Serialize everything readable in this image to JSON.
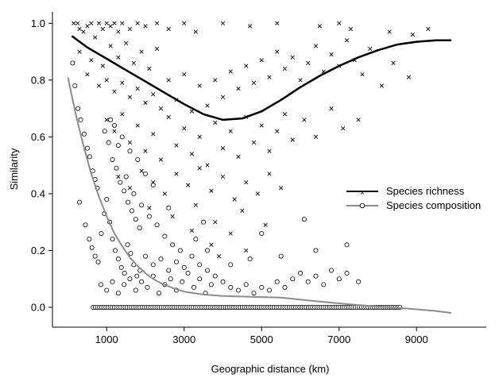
{
  "chart_data": {
    "type": "scatter",
    "xlabel": "Geographic distance (km)",
    "ylabel": "Similarity",
    "xlim": [
      -400,
      10800
    ],
    "ylim": [
      -0.07,
      1.04
    ],
    "xticks": [
      1000,
      3000,
      5000,
      7000,
      9000
    ],
    "xtick_labels": [
      "1000",
      "3000",
      "5000",
      "7000",
      "9000"
    ],
    "yticks": [
      0.0,
      0.2,
      0.4,
      0.6,
      0.8,
      1.0
    ],
    "ytick_labels": [
      "0.0",
      "0.2",
      "0.4",
      "0.6",
      "0.8",
      "1.0"
    ],
    "grid": false,
    "legend_position": "right",
    "series": [
      {
        "name": "Species richness",
        "marker": "x",
        "color": "#000000",
        "trend": {
          "x": [
            100,
            500,
            1000,
            1500,
            2000,
            2500,
            3000,
            3500,
            4000,
            4500,
            5000,
            5500,
            6000,
            6500,
            7000,
            7500,
            8000,
            8500,
            9000,
            9500,
            9900
          ],
          "y": [
            0.955,
            0.915,
            0.875,
            0.835,
            0.795,
            0.755,
            0.715,
            0.68,
            0.66,
            0.665,
            0.69,
            0.73,
            0.775,
            0.815,
            0.85,
            0.88,
            0.905,
            0.925,
            0.935,
            0.94,
            0.94
          ]
        },
        "points": [
          [
            150,
            1.0
          ],
          [
            250,
            1.0
          ],
          [
            300,
            0.98
          ],
          [
            400,
            0.97
          ],
          [
            500,
            0.99
          ],
          [
            600,
            1.0
          ],
          [
            700,
            0.95
          ],
          [
            800,
            1.0
          ],
          [
            900,
            0.98
          ],
          [
            1000,
            1.0
          ],
          [
            1100,
            0.99
          ],
          [
            1200,
            1.0
          ],
          [
            1300,
            0.97
          ],
          [
            1400,
            1.0
          ],
          [
            1600,
            0.98
          ],
          [
            1800,
            1.0
          ],
          [
            2000,
            0.99
          ],
          [
            2300,
            1.0
          ],
          [
            2600,
            0.98
          ],
          [
            3000,
            1.0
          ],
          [
            3300,
            0.97
          ],
          [
            4000,
            1.0
          ],
          [
            4700,
            0.99
          ],
          [
            5400,
            1.0
          ],
          [
            6500,
            0.99
          ],
          [
            7000,
            1.0
          ],
          [
            7300,
            0.98
          ],
          [
            8300,
            0.97
          ],
          [
            8900,
            0.96
          ],
          [
            9300,
            0.98
          ],
          [
            300,
            0.9
          ],
          [
            600,
            0.87
          ],
          [
            900,
            0.85
          ],
          [
            1100,
            0.92
          ],
          [
            1300,
            0.88
          ],
          [
            1500,
            0.93
          ],
          [
            1700,
            0.86
          ],
          [
            1900,
            0.9
          ],
          [
            2100,
            0.84
          ],
          [
            2300,
            0.91
          ],
          [
            500,
            0.82
          ],
          [
            800,
            0.78
          ],
          [
            1000,
            0.8
          ],
          [
            1200,
            0.76
          ],
          [
            1400,
            0.79
          ],
          [
            1600,
            0.74
          ],
          [
            1800,
            0.77
          ],
          [
            2000,
            0.72
          ],
          [
            2200,
            0.75
          ],
          [
            2400,
            0.7
          ],
          [
            2600,
            0.8
          ],
          [
            2800,
            0.73
          ],
          [
            3000,
            0.82
          ],
          [
            3200,
            0.69
          ],
          [
            3400,
            0.78
          ],
          [
            3600,
            0.71
          ],
          [
            3800,
            0.8
          ],
          [
            4000,
            0.74
          ],
          [
            4200,
            0.83
          ],
          [
            4400,
            0.77
          ],
          [
            4600,
            0.85
          ],
          [
            4800,
            0.79
          ],
          [
            5000,
            0.87
          ],
          [
            5200,
            0.81
          ],
          [
            5400,
            0.9
          ],
          [
            5600,
            0.84
          ],
          [
            5800,
            0.88
          ],
          [
            6000,
            0.8
          ],
          [
            6200,
            0.86
          ],
          [
            6400,
            0.92
          ],
          [
            6600,
            0.83
          ],
          [
            6800,
            0.89
          ],
          [
            7000,
            0.85
          ],
          [
            7200,
            0.94
          ],
          [
            7400,
            0.87
          ],
          [
            7600,
            0.82
          ],
          [
            7800,
            0.91
          ],
          [
            8100,
            0.78
          ],
          [
            8400,
            0.86
          ],
          [
            8800,
            0.81
          ],
          [
            1000,
            0.66
          ],
          [
            1200,
            0.62
          ],
          [
            1400,
            0.68
          ],
          [
            1600,
            0.58
          ],
          [
            1800,
            0.64
          ],
          [
            2000,
            0.55
          ],
          [
            2200,
            0.61
          ],
          [
            2400,
            0.52
          ],
          [
            2600,
            0.67
          ],
          [
            2800,
            0.57
          ],
          [
            3000,
            0.63
          ],
          [
            3200,
            0.54
          ],
          [
            3400,
            0.6
          ],
          [
            3600,
            0.5
          ],
          [
            3800,
            0.65
          ],
          [
            4000,
            0.56
          ],
          [
            4200,
            0.62
          ],
          [
            4400,
            0.53
          ],
          [
            4600,
            0.67
          ],
          [
            4800,
            0.58
          ],
          [
            5000,
            0.64
          ],
          [
            5200,
            0.55
          ],
          [
            5400,
            0.62
          ],
          [
            5600,
            0.68
          ],
          [
            5800,
            0.59
          ],
          [
            6100,
            0.66
          ],
          [
            6400,
            0.6
          ],
          [
            6800,
            0.7
          ],
          [
            7100,
            0.63
          ],
          [
            7500,
            0.66
          ],
          [
            1300,
            0.46
          ],
          [
            1600,
            0.42
          ],
          [
            1900,
            0.48
          ],
          [
            2200,
            0.44
          ],
          [
            2500,
            0.4
          ],
          [
            2800,
            0.47
          ],
          [
            3100,
            0.43
          ],
          [
            3400,
            0.49
          ],
          [
            3700,
            0.41
          ],
          [
            4000,
            0.46
          ],
          [
            4300,
            0.38
          ],
          [
            4600,
            0.44
          ],
          [
            4900,
            0.4
          ],
          [
            5200,
            0.47
          ],
          [
            5500,
            0.42
          ],
          [
            2100,
            0.35
          ],
          [
            2700,
            0.32
          ],
          [
            3300,
            0.36
          ],
          [
            3800,
            0.3
          ],
          [
            4500,
            0.34
          ],
          [
            3200,
            0.27
          ],
          [
            3700,
            0.22
          ],
          [
            4200,
            0.26
          ],
          [
            5100,
            0.29
          ],
          [
            3900,
            0.18
          ],
          [
            4600,
            0.2
          ]
        ]
      },
      {
        "name": "Species composition",
        "marker": "o",
        "color": "#808080",
        "trend": {
          "x": [
            0,
            200,
            400,
            600,
            800,
            1000,
            1200,
            1400,
            1600,
            1800,
            2000,
            2200,
            2400,
            2700,
            3000,
            3500,
            4000,
            4500,
            5000,
            5500,
            6000,
            6500,
            7000,
            7500,
            8000,
            8500,
            9000,
            9500,
            9900
          ],
          "y": [
            0.81,
            0.68,
            0.57,
            0.47,
            0.39,
            0.32,
            0.26,
            0.215,
            0.175,
            0.145,
            0.12,
            0.1,
            0.085,
            0.068,
            0.055,
            0.045,
            0.04,
            0.038,
            0.036,
            0.034,
            0.027,
            0.02,
            0.014,
            0.008,
            0.003,
            -0.002,
            -0.007,
            -0.013,
            -0.02
          ]
        },
        "points": [
          [
            120,
            0.86
          ],
          [
            180,
            0.78
          ],
          [
            260,
            0.7
          ],
          [
            330,
            0.66
          ],
          [
            420,
            0.61
          ],
          [
            500,
            0.56
          ],
          [
            560,
            0.53
          ],
          [
            640,
            0.48
          ],
          [
            700,
            0.45
          ],
          [
            760,
            0.42
          ],
          [
            300,
            0.37
          ],
          [
            450,
            0.29
          ],
          [
            550,
            0.24
          ],
          [
            620,
            0.21
          ],
          [
            700,
            0.18
          ],
          [
            780,
            0.16
          ],
          [
            860,
            0.26
          ],
          [
            940,
            0.33
          ],
          [
            1000,
            0.38
          ],
          [
            1080,
            0.3
          ],
          [
            1150,
            0.24
          ],
          [
            1220,
            0.2
          ],
          [
            1300,
            0.17
          ],
          [
            1380,
            0.14
          ],
          [
            1460,
            0.12
          ],
          [
            1540,
            0.22
          ],
          [
            1620,
            0.19
          ],
          [
            1700,
            0.15
          ],
          [
            1780,
            0.11
          ],
          [
            1860,
            0.13
          ],
          [
            950,
            0.62
          ],
          [
            1050,
            0.58
          ],
          [
            1150,
            0.52
          ],
          [
            1250,
            0.49
          ],
          [
            1350,
            0.44
          ],
          [
            1450,
            0.41
          ],
          [
            1550,
            0.37
          ],
          [
            1650,
            0.34
          ],
          [
            1750,
            0.31
          ],
          [
            1850,
            0.28
          ],
          [
            1100,
            0.66
          ],
          [
            1300,
            0.57
          ],
          [
            1500,
            0.46
          ],
          [
            1700,
            0.4
          ],
          [
            1900,
            0.36
          ],
          [
            2100,
            0.32
          ],
          [
            2300,
            0.29
          ],
          [
            2500,
            0.25
          ],
          [
            2700,
            0.22
          ],
          [
            2900,
            0.2
          ],
          [
            850,
            0.08
          ],
          [
            1000,
            0.06
          ],
          [
            1150,
            0.09
          ],
          [
            1300,
            0.05
          ],
          [
            1450,
            0.08
          ],
          [
            1600,
            0.1
          ],
          [
            1750,
            0.06
          ],
          [
            1900,
            0.09
          ],
          [
            2050,
            0.07
          ],
          [
            2200,
            0.11
          ],
          [
            2350,
            0.05
          ],
          [
            2500,
            0.08
          ],
          [
            2650,
            0.1
          ],
          [
            2800,
            0.06
          ],
          [
            2950,
            0.09
          ],
          [
            3100,
            0.12
          ],
          [
            3250,
            0.07
          ],
          [
            3400,
            0.1
          ],
          [
            3550,
            0.05
          ],
          [
            3700,
            0.08
          ],
          [
            2000,
            0.18
          ],
          [
            2200,
            0.15
          ],
          [
            2400,
            0.17
          ],
          [
            2600,
            0.13
          ],
          [
            2800,
            0.16
          ],
          [
            3000,
            0.14
          ],
          [
            3200,
            0.18
          ],
          [
            3400,
            0.15
          ],
          [
            3600,
            0.13
          ],
          [
            3800,
            0.11
          ],
          [
            4000,
            0.09
          ],
          [
            4200,
            0.07
          ],
          [
            4400,
            0.06
          ],
          [
            4600,
            0.08
          ],
          [
            4800,
            0.05
          ],
          [
            5000,
            0.07
          ],
          [
            5200,
            0.06
          ],
          [
            5400,
            0.09
          ],
          [
            5600,
            0.07
          ],
          [
            5800,
            0.1
          ],
          [
            6000,
            0.12
          ],
          [
            6200,
            0.09
          ],
          [
            6400,
            0.11
          ],
          [
            6600,
            0.08
          ],
          [
            6800,
            0.13
          ],
          [
            7000,
            0.1
          ],
          [
            7200,
            0.12
          ],
          [
            7500,
            0.09
          ],
          [
            3300,
            0.24
          ],
          [
            3600,
            0.2
          ],
          [
            3500,
            0.3
          ],
          [
            4200,
            0.15
          ],
          [
            5000,
            0.26
          ],
          [
            5500,
            0.18
          ],
          [
            6100,
            0.31
          ],
          [
            6400,
            0.2
          ],
          [
            7200,
            0.22
          ],
          [
            4700,
            0.17
          ],
          [
            2600,
            0.35
          ],
          [
            2200,
            0.43
          ],
          [
            1600,
            0.55
          ],
          [
            1400,
            0.6
          ],
          [
            1200,
            0.64
          ],
          [
            1800,
            0.52
          ],
          [
            2000,
            0.47
          ]
        ],
        "baseline_points": {
          "y": 0.0,
          "x_start": 650,
          "x_end": 8600,
          "step": 55
        }
      }
    ]
  }
}
